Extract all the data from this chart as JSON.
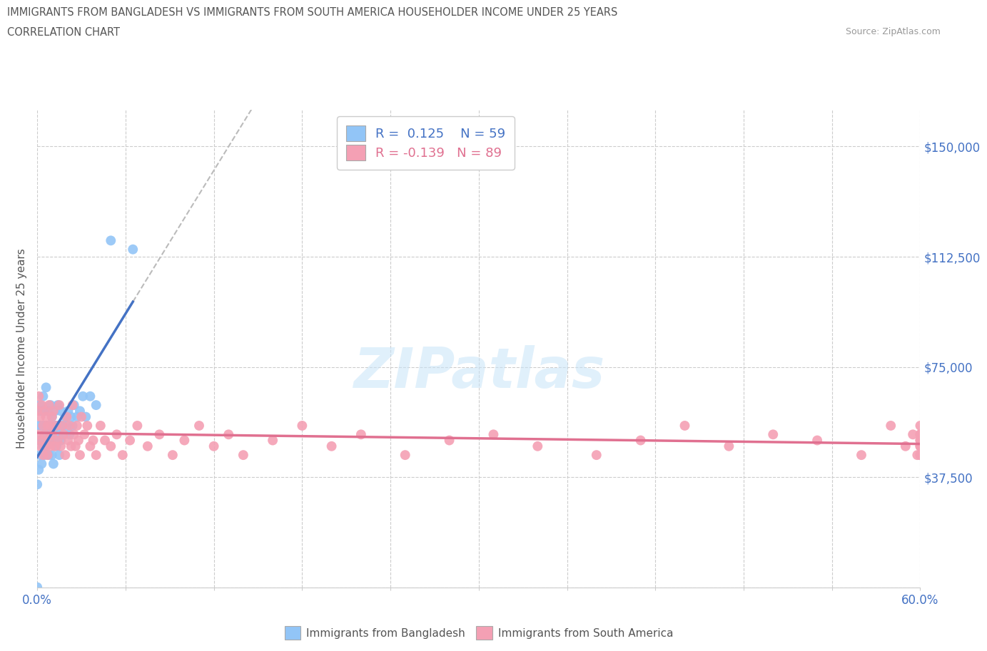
{
  "title_line1": "IMMIGRANTS FROM BANGLADESH VS IMMIGRANTS FROM SOUTH AMERICA HOUSEHOLDER INCOME UNDER 25 YEARS",
  "title_line2": "CORRELATION CHART",
  "source_text": "Source: ZipAtlas.com",
  "ylabel": "Householder Income Under 25 years",
  "xlim": [
    0.0,
    0.6
  ],
  "ylim": [
    0,
    162500
  ],
  "ytick_values": [
    0,
    37500,
    75000,
    112500,
    150000
  ],
  "ytick_labels": [
    "",
    "$37,500",
    "$75,000",
    "$112,500",
    "$150,000"
  ],
  "legend_label1": "Immigrants from Bangladesh",
  "legend_label2": "Immigrants from South America",
  "R1": 0.125,
  "N1": 59,
  "R2": -0.139,
  "N2": 89,
  "color1": "#92C5F7",
  "color2": "#F4A0B4",
  "trendline1_color": "#4472C4",
  "trendline2_color": "#E07090",
  "dash_color": "#BBBBBB",
  "watermark": "ZIPatlas",
  "bangladesh_x": [
    0.0,
    0.0,
    0.0,
    0.001,
    0.001,
    0.001,
    0.002,
    0.002,
    0.002,
    0.003,
    0.003,
    0.003,
    0.004,
    0.004,
    0.004,
    0.005,
    0.005,
    0.005,
    0.006,
    0.006,
    0.006,
    0.007,
    0.007,
    0.008,
    0.008,
    0.009,
    0.009,
    0.01,
    0.01,
    0.01,
    0.011,
    0.011,
    0.012,
    0.012,
    0.013,
    0.013,
    0.014,
    0.014,
    0.015,
    0.015,
    0.016,
    0.016,
    0.017,
    0.018,
    0.019,
    0.02,
    0.021,
    0.022,
    0.023,
    0.024,
    0.025,
    0.027,
    0.029,
    0.031,
    0.033,
    0.036,
    0.04,
    0.05,
    0.065
  ],
  "bangladesh_y": [
    0,
    55000,
    35000,
    50000,
    60000,
    40000,
    55000,
    62000,
    45000,
    60000,
    50000,
    42000,
    55000,
    48000,
    65000,
    52000,
    60000,
    45000,
    55000,
    48000,
    68000,
    50000,
    60000,
    55000,
    45000,
    52000,
    62000,
    50000,
    58000,
    45000,
    55000,
    42000,
    60000,
    50000,
    55000,
    48000,
    52000,
    62000,
    55000,
    45000,
    60000,
    50000,
    55000,
    52000,
    58000,
    55000,
    60000,
    52000,
    58000,
    55000,
    62000,
    58000,
    60000,
    65000,
    58000,
    65000,
    62000,
    118000,
    115000
  ],
  "south_america_x": [
    0.0,
    0.001,
    0.001,
    0.002,
    0.002,
    0.003,
    0.003,
    0.004,
    0.004,
    0.005,
    0.005,
    0.006,
    0.006,
    0.007,
    0.007,
    0.008,
    0.008,
    0.009,
    0.009,
    0.01,
    0.01,
    0.011,
    0.012,
    0.013,
    0.014,
    0.015,
    0.016,
    0.017,
    0.018,
    0.019,
    0.02,
    0.021,
    0.022,
    0.023,
    0.024,
    0.025,
    0.026,
    0.027,
    0.028,
    0.029,
    0.03,
    0.032,
    0.034,
    0.036,
    0.038,
    0.04,
    0.043,
    0.046,
    0.05,
    0.054,
    0.058,
    0.063,
    0.068,
    0.075,
    0.083,
    0.092,
    0.1,
    0.11,
    0.12,
    0.13,
    0.14,
    0.16,
    0.18,
    0.2,
    0.22,
    0.25,
    0.28,
    0.31,
    0.34,
    0.38,
    0.41,
    0.44,
    0.47,
    0.5,
    0.53,
    0.56,
    0.58,
    0.59,
    0.595,
    0.598,
    0.6,
    0.6,
    0.6,
    0.6,
    0.6,
    0.6,
    0.6,
    0.6,
    0.6
  ],
  "south_america_y": [
    60000,
    65000,
    52000,
    58000,
    48000,
    62000,
    50000,
    55000,
    45000,
    60000,
    52000,
    48000,
    58000,
    55000,
    45000,
    62000,
    50000,
    55000,
    48000,
    58000,
    52000,
    60000,
    48000,
    55000,
    50000,
    62000,
    48000,
    55000,
    52000,
    45000,
    58000,
    50000,
    55000,
    48000,
    62000,
    52000,
    48000,
    55000,
    50000,
    45000,
    58000,
    52000,
    55000,
    48000,
    50000,
    45000,
    55000,
    50000,
    48000,
    52000,
    45000,
    50000,
    55000,
    48000,
    52000,
    45000,
    50000,
    55000,
    48000,
    52000,
    45000,
    50000,
    55000,
    48000,
    52000,
    45000,
    50000,
    52000,
    48000,
    45000,
    50000,
    55000,
    48000,
    52000,
    50000,
    45000,
    55000,
    48000,
    52000,
    45000,
    50000,
    52000,
    48000,
    45000,
    50000,
    55000,
    48000,
    52000,
    45000
  ]
}
